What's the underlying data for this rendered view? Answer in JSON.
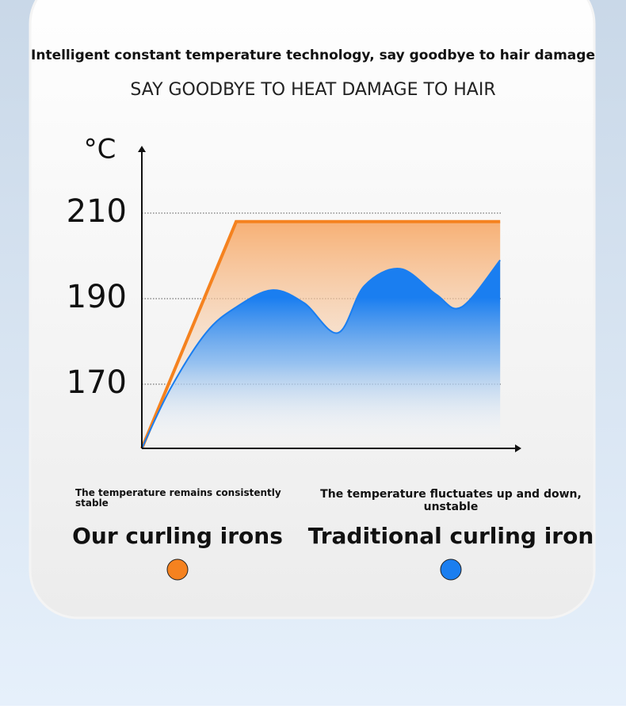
{
  "chart_data": {
    "type": "line",
    "title": "Intelligent constant temperature technology, say goodbye to hair damage",
    "subtitle": "SAY GOODBYE TO HEAT DAMAGE TO HAIR",
    "y_label": "°C",
    "xlim": [
      0,
      100
    ],
    "ylim": [
      155,
      225
    ],
    "yticks": [
      170,
      190,
      210
    ],
    "grid": true,
    "series": [
      {
        "name": "Our curling irons",
        "description": "The temperature remains consistently stable",
        "color": "#f5821f",
        "x": [
          0,
          25,
          95
        ],
        "values": [
          155,
          208,
          208
        ]
      },
      {
        "name": "Traditional curling iron",
        "description": "The temperature fluctuates up and down, unstable",
        "color": "#1a7ef0",
        "x": [
          0,
          7.6,
          17,
          25,
          34.5,
          43,
          52,
          59,
          68.5,
          78,
          84.7,
          95
        ],
        "values": [
          155,
          169,
          182,
          188,
          192,
          189,
          182,
          193,
          197,
          191,
          188,
          199
        ]
      }
    ]
  }
}
